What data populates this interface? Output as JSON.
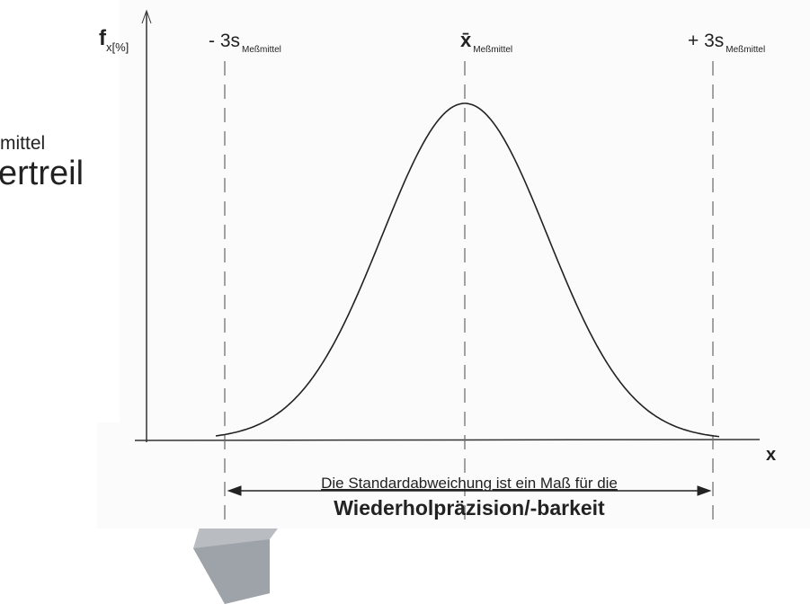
{
  "slide": {
    "fragments": [
      "mittel",
      "ertreil"
    ]
  },
  "diagram": {
    "y_axis_label": "f",
    "y_axis_subscript": "x[%]",
    "x_axis_label": "x",
    "markers": [
      {
        "label": "- 3s",
        "subscript": "Meßmittel"
      },
      {
        "label": "x̄",
        "subscript": "Meßmittel"
      },
      {
        "label": "+ 3s",
        "subscript": "Meßmittel"
      }
    ],
    "caption_line1": "Die Standardabweichung ist ein Maß für die",
    "caption_line2": "Wiederholpräzision/-barkeit"
  }
}
